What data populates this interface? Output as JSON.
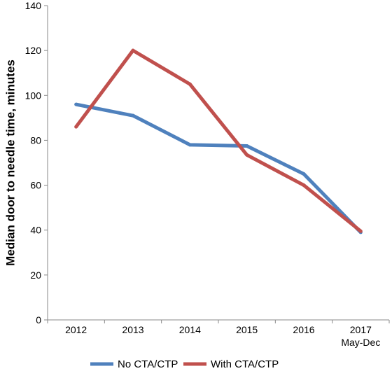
{
  "chart_data": {
    "type": "line",
    "categories": [
      "2012",
      "2013",
      "2014",
      "2015",
      "2016",
      "2017"
    ],
    "category_sublabels": [
      "",
      "",
      "",
      "",
      "",
      "May-Dec"
    ],
    "ylabel": "Median door to needle time, minutes",
    "xlabel": "",
    "ylim": [
      0,
      140
    ],
    "yticks": [
      0,
      20,
      40,
      60,
      80,
      100,
      120,
      140
    ],
    "grid": false,
    "legend_position": "bottom",
    "series": [
      {
        "name": "No CTA/CTP",
        "color": "#4f81bd",
        "values": [
          96,
          91,
          78,
          77.5,
          65,
          39
        ]
      },
      {
        "name": "With CTA/CTP",
        "color": "#c0504d",
        "values": [
          86,
          120,
          105,
          73.5,
          60,
          39.5
        ]
      }
    ]
  }
}
